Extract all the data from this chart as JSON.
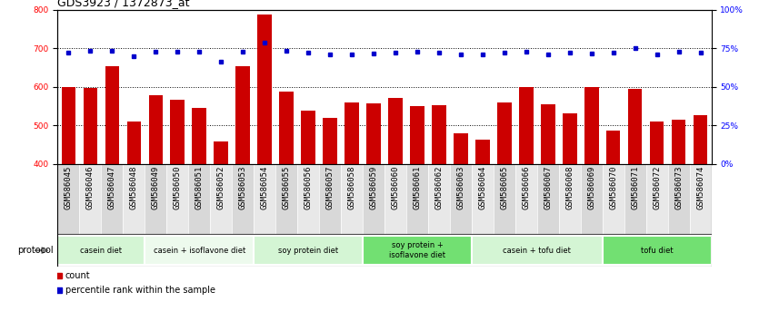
{
  "title": "GDS3923 / 1372873_at",
  "samples": [
    "GSM586045",
    "GSM586046",
    "GSM586047",
    "GSM586048",
    "GSM586049",
    "GSM586050",
    "GSM586051",
    "GSM586052",
    "GSM586053",
    "GSM586054",
    "GSM586055",
    "GSM586056",
    "GSM586057",
    "GSM586058",
    "GSM586059",
    "GSM586060",
    "GSM586061",
    "GSM586062",
    "GSM586063",
    "GSM586064",
    "GSM586065",
    "GSM586066",
    "GSM586067",
    "GSM586068",
    "GSM586069",
    "GSM586070",
    "GSM586071",
    "GSM586072",
    "GSM586073",
    "GSM586074"
  ],
  "bar_values": [
    600,
    597,
    653,
    510,
    578,
    565,
    545,
    458,
    652,
    788,
    588,
    537,
    520,
    560,
    557,
    570,
    550,
    553,
    480,
    462,
    560,
    598,
    555,
    530,
    600,
    485,
    595,
    510,
    515,
    526
  ],
  "blue_values": [
    688,
    692,
    692,
    678,
    690,
    690,
    690,
    665,
    690,
    715,
    692,
    688,
    683,
    683,
    685,
    688,
    690,
    688,
    683,
    683,
    688,
    690,
    683,
    688,
    685,
    688,
    700,
    683,
    690,
    688
  ],
  "protocols": [
    {
      "label": "casein diet",
      "start": 0,
      "end": 4,
      "color": "#d4f5d4"
    },
    {
      "label": "casein + isoflavone diet",
      "start": 4,
      "end": 9,
      "color": "#edfaed"
    },
    {
      "label": "soy protein diet",
      "start": 9,
      "end": 14,
      "color": "#d4f5d4"
    },
    {
      "label": "soy protein +\nisoflavone diet",
      "start": 14,
      "end": 19,
      "color": "#72e072"
    },
    {
      "label": "casein + tofu diet",
      "start": 19,
      "end": 25,
      "color": "#d4f5d4"
    },
    {
      "label": "tofu diet",
      "start": 25,
      "end": 30,
      "color": "#72e072"
    }
  ],
  "bar_color": "#cc0000",
  "blue_color": "#0000cc",
  "ylim_left": [
    400,
    800
  ],
  "ylim_right": [
    0,
    100
  ],
  "yticks_left": [
    400,
    500,
    600,
    700,
    800
  ],
  "yticks_right": [
    0,
    25,
    50,
    75,
    100
  ],
  "background_color": "#ffffff",
  "title_fontsize": 9,
  "tick_fontsize": 6.5,
  "label_fontsize": 6.5
}
